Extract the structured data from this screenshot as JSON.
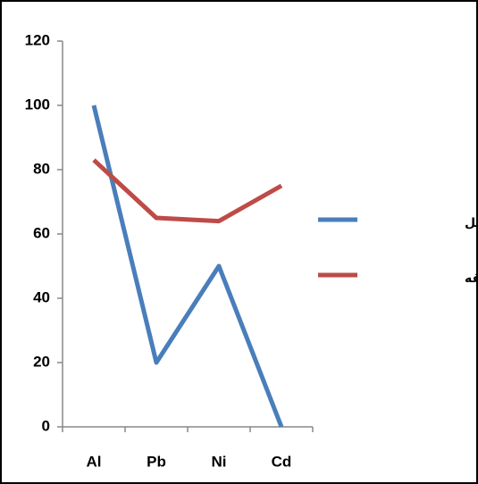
{
  "chart_data": {
    "type": "line",
    "categories": [
      "Al",
      "Pb",
      "Ni",
      "Cd"
    ],
    "series": [
      {
        "name": "میانگین جهانی شیل",
        "color": "#4a7ebb",
        "values": [
          100,
          20,
          50,
          0
        ]
      },
      {
        "name": "میانگین منطقه",
        "color": "#be4b48",
        "values": [
          83,
          65,
          64,
          75
        ]
      }
    ],
    "ylim": [
      0,
      120
    ],
    "yticks": [
      0,
      20,
      40,
      60,
      80,
      100,
      120
    ],
    "grid": false,
    "legend": "right"
  }
}
